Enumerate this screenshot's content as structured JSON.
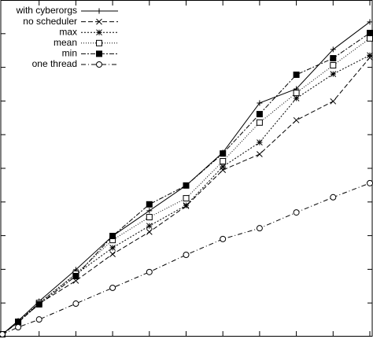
{
  "chart_data": {
    "type": "line",
    "x": [
      0,
      0.43,
      1,
      2,
      3,
      4,
      5,
      6,
      7,
      8,
      9,
      10
    ],
    "xlim": [
      0,
      10
    ],
    "ylim": [
      0,
      10
    ],
    "xticks": [
      1,
      2,
      3,
      4,
      5,
      6,
      7,
      8,
      9,
      10
    ],
    "yticks": [
      1,
      2,
      3,
      4,
      5,
      6,
      7,
      8,
      9
    ],
    "legend": "top-left",
    "series": [
      {
        "name": "with cyberorgs",
        "color": "#000000",
        "marker": "plus",
        "dash": "none",
        "values": [
          0.07,
          0.47,
          1.05,
          1.99,
          2.99,
          3.74,
          4.49,
          5.47,
          6.94,
          7.36,
          8.53,
          9.35
        ]
      },
      {
        "name": "no scheduler",
        "color": "#000000",
        "marker": "cross",
        "dash": "6,3",
        "values": [
          0.07,
          0.42,
          0.98,
          1.66,
          2.45,
          3.11,
          3.88,
          4.95,
          5.42,
          6.43,
          6.99,
          8.29
        ]
      },
      {
        "name": "max",
        "color": "#000000",
        "marker": "star",
        "dash": "2,2",
        "values": [
          0.07,
          0.44,
          1.0,
          1.85,
          2.64,
          3.29,
          3.9,
          5.05,
          5.77,
          7.08,
          7.8,
          8.36
        ]
      },
      {
        "name": "mean",
        "color": "#000000",
        "marker": "square",
        "dash": "1,2",
        "values": [
          0.07,
          0.44,
          1.0,
          1.87,
          2.87,
          3.55,
          4.11,
          5.21,
          6.36,
          7.24,
          8.06,
          8.86
        ]
      },
      {
        "name": "min",
        "color": "#000000",
        "marker": "filled-square",
        "dash": "6,2,2,2",
        "values": [
          0.07,
          0.44,
          0.96,
          1.8,
          2.99,
          3.93,
          4.49,
          5.44,
          6.61,
          7.78,
          8.27,
          9.02
        ]
      },
      {
        "name": "one thread",
        "color": "#000000",
        "marker": "circle",
        "dash": "6,3,1,3",
        "values": [
          0.07,
          0.28,
          0.51,
          0.98,
          1.45,
          1.92,
          2.43,
          2.9,
          3.22,
          3.69,
          4.14,
          4.56
        ]
      }
    ]
  }
}
